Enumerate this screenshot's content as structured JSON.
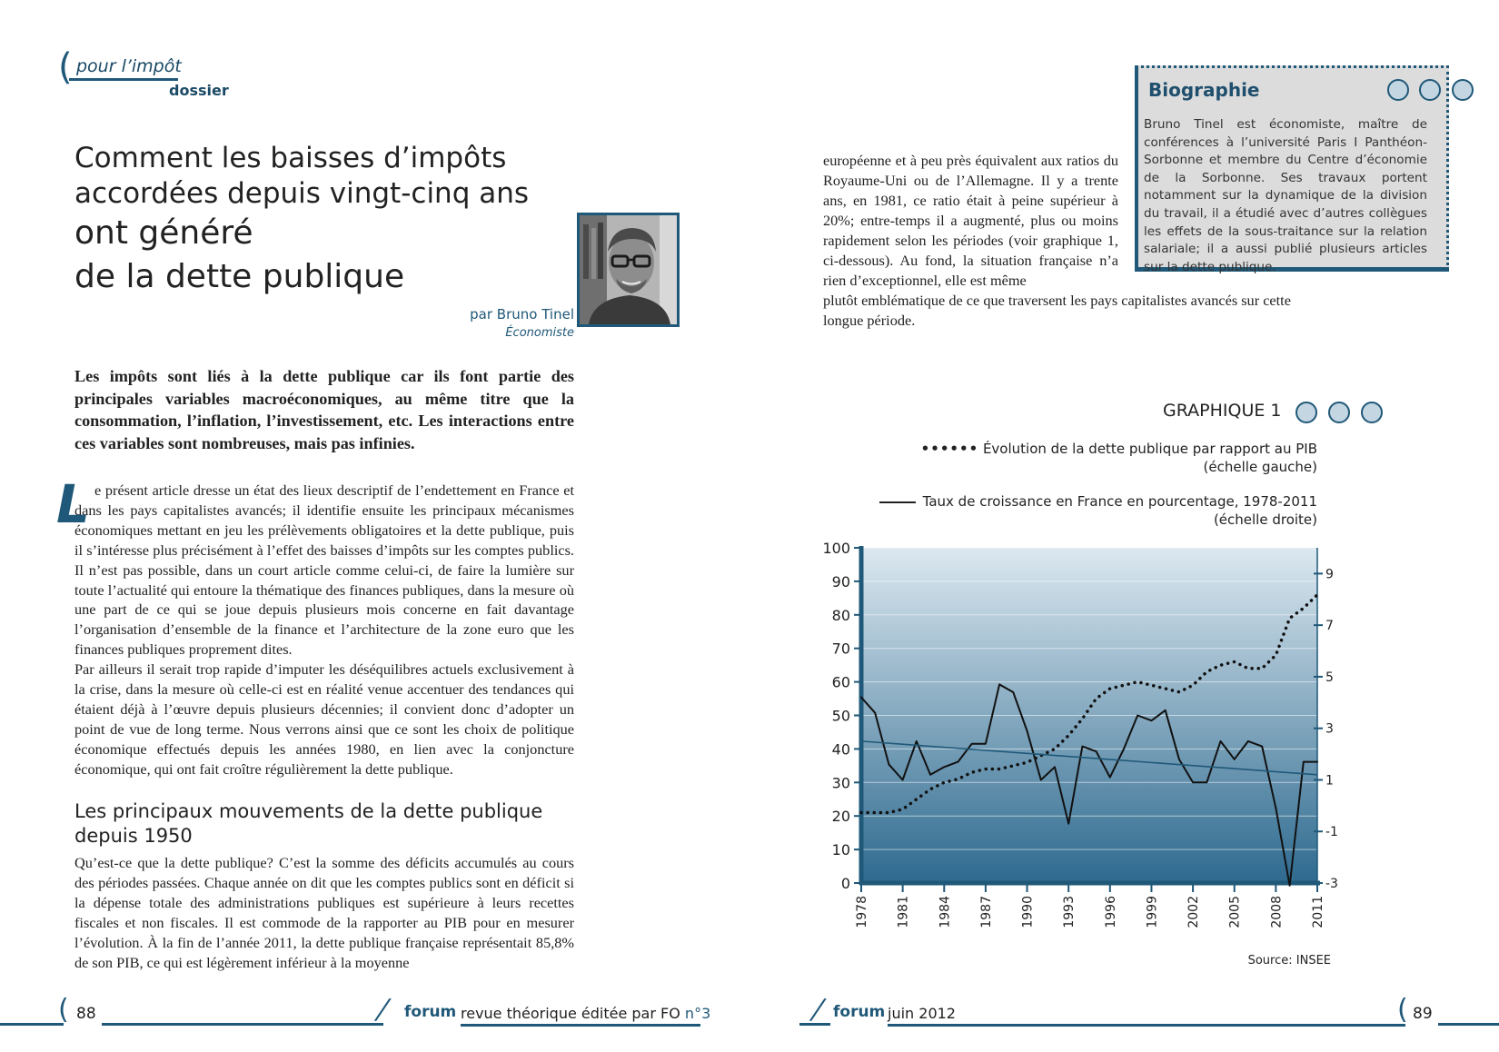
{
  "header": {
    "section": "pour l’impôt",
    "subsection": "dossier"
  },
  "article": {
    "title_line1": "Comment les baisses d’impôts",
    "title_line2": "accordées depuis vingt-cinq ans",
    "title_line3": "ont généré",
    "title_line4": "de la dette publique",
    "author": "par Bruno Tinel",
    "author_role": "Économiste",
    "lead": "Les impôts sont liés à la dette publique car ils font partie des principales variables macroéconomiques, au même titre que la consommation, l’inflation, l’investissement, etc. Les interactions entre ces variables sont nombreuses, mais pas infinies.",
    "dropcap": "L",
    "para1": "e présent article dresse un état des lieux descriptif de l’endettement en France et dans les pays capitalistes avancés; il identifie ensuite les principaux mécanismes économiques mettant en jeu les prélèvements obligatoires et la dette publique, puis il s’intéresse plus précisément à l’effet des baisses d’impôts sur les comptes publics. Il n’est pas possible, dans un court article comme celui-ci, de faire la lumière sur toute l’actualité qui entoure la thématique des finances publiques, dans la mesure où une part de ce qui se joue depuis plusieurs mois concerne en fait davantage l’organisation d’ensemble de la finance et l’architecture de la zone euro que les finances publiques proprement dites.",
    "para2": "Par ailleurs il serait trop rapide d’imputer les déséquilibres actuels exclusivement à la crise, dans la mesure où celle-ci est en réalité venue accentuer des tendances qui étaient déjà à l’œuvre depuis plusieurs décennies; il convient donc d’adopter un point de vue de long terme. Nous verrons ainsi que ce sont les choix de politique économique effectués depuis les années 1980, en lien avec la conjoncture économique, qui ont fait croître régulièrement la dette publique.",
    "subheading": "Les principaux mouvements de la dette publique depuis 1950",
    "para3": "Qu’est-ce que la dette publique? C’est la somme des déficits accumulés au cours des périodes passées. Chaque année on dit que les comptes publics sont en déficit si la dépense totale des administrations publiques est supérieure à leurs recettes fiscales et non fiscales. Il est commode de la rapporter au PIB pour en mesurer l’évolution. À la fin de l’année 2011, la dette publique française représentait 85,8% de son PIB, ce qui est légèrement inférieur à la moyenne",
    "col2_top": "européenne et à peu près équivalent aux ratios du Royaume-Uni ou de l’Allemagne. Il y a trente ans, en 1981, ce ratio était à peine supérieur à 20%; entre-temps il a augmenté, plus ou moins rapidement selon les périodes (voir graphique 1, ci-dessous). Au fond, la situation française n’a rien d’exceptionnel, elle est même",
    "col2_bottom": "plutôt emblématique de ce que traversent les pays capitalistes avancés sur cette longue période."
  },
  "biography": {
    "title": "Biographie",
    "text": "Bruno Tinel est économiste, maître de conférences à l’université Paris I Panthéon-Sorbonne et membre du Centre d’économie de la Sorbonne. Ses travaux portent notamment sur la dynamique de la division du travail, il a étudié avec d’autres collègues les effets de la sous-traitance sur la relation salariale; il a aussi publié plusieurs articles sur la dette publique."
  },
  "figure": {
    "label": "GRAPHIQUE 1",
    "legend1_marker": "••••••",
    "legend1_line1": "Évolution de la dette publique par rapport au PIB",
    "legend1_line2": "(échelle gauche)",
    "legend2_line1": "Taux de croissance en France en pourcentage, 1978-2011",
    "legend2_line2": "(échelle droite)",
    "source": "Source: INSEE"
  },
  "chart_data": {
    "type": "line",
    "title": "",
    "x": [
      1978,
      1979,
      1980,
      1981,
      1982,
      1983,
      1984,
      1985,
      1986,
      1987,
      1988,
      1989,
      1990,
      1991,
      1992,
      1993,
      1994,
      1995,
      1996,
      1997,
      1998,
      1999,
      2000,
      2001,
      2002,
      2003,
      2004,
      2005,
      2006,
      2007,
      2008,
      2009,
      2010,
      2011
    ],
    "x_ticks": [
      "1978",
      "1981",
      "1984",
      "1987",
      "1990",
      "1993",
      "1996",
      "1999",
      "2002",
      "2005",
      "2008",
      "2011"
    ],
    "y_left_ticks": [
      "0",
      "10",
      "20",
      "30",
      "40",
      "50",
      "60",
      "70",
      "80",
      "90",
      "100"
    ],
    "y_right_ticks": [
      "-3",
      "-1",
      "1",
      "3",
      "5",
      "7",
      "9"
    ],
    "y_left_lim": [
      0,
      100
    ],
    "y_right_lim": [
      -3,
      10
    ],
    "series": [
      {
        "name": "Évolution de la dette publique par rapport au PIB",
        "axis": "left",
        "style": "dotted",
        "values": [
          21,
          21,
          21,
          22,
          25,
          28,
          30,
          31,
          33,
          34,
          34,
          35,
          36,
          38,
          40,
          44,
          49,
          55,
          58,
          59,
          60,
          59,
          58,
          57,
          59,
          63,
          65,
          66,
          64,
          64,
          68,
          79,
          82,
          86
        ]
      },
      {
        "name": "Taux de croissance en France en pourcentage, 1978-2011",
        "axis": "right",
        "style": "solid",
        "values": [
          4.2,
          3.6,
          1.6,
          1.0,
          2.5,
          1.2,
          1.5,
          1.7,
          2.4,
          2.4,
          4.7,
          4.4,
          2.9,
          1.0,
          1.5,
          -0.7,
          2.3,
          2.1,
          1.1,
          2.2,
          3.5,
          3.3,
          3.7,
          1.8,
          0.9,
          0.9,
          2.5,
          1.8,
          2.5,
          2.3,
          -0.1,
          -3.1,
          1.7,
          1.7
        ]
      },
      {
        "name": "",
        "axis": "right",
        "style": "trend",
        "values_endpoints": [
          2.5,
          1.2
        ]
      }
    ],
    "grid": true,
    "legend_position": "top-right",
    "colors": {
      "plot_top": "#dce8f0",
      "plot_bottom": "#2e6a8f",
      "debt": "#111111",
      "growth": "#111111",
      "trend": "#1f5878"
    }
  },
  "footer": {
    "left_page": "88",
    "left_brand": "forum",
    "left_text": "revue théorique éditée par FO",
    "left_issue": "n°3",
    "right_brand": "forum",
    "right_text": "juin 2012",
    "right_page": "89"
  }
}
